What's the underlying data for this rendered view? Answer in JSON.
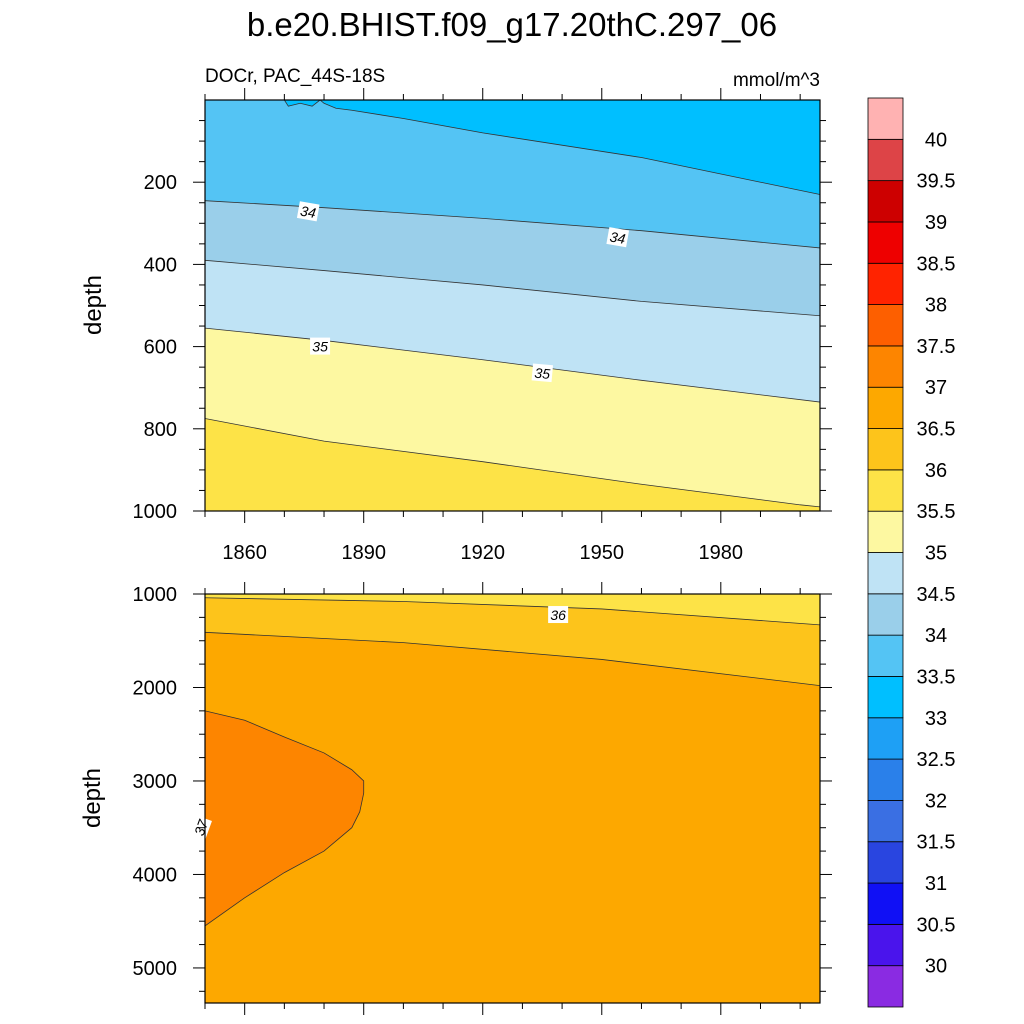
{
  "title": "b.e20.BHIST.f09_g17.20thC.297_06",
  "colorbar": {
    "levels": [
      "30",
      "30.5",
      "31",
      "31.5",
      "32",
      "32.5",
      "33",
      "33.5",
      "34",
      "34.5",
      "35",
      "35.5",
      "36",
      "36.5",
      "37",
      "37.5",
      "38",
      "38.5",
      "39",
      "39.5",
      "40"
    ],
    "colors": [
      "#8a2be2",
      "#4a14ec",
      "#1010f5",
      "#2945e0",
      "#3a6fe3",
      "#2a80ea",
      "#1ea0f5",
      "#00bfff",
      "#54c4f4",
      "#9acfea",
      "#bfe3f5",
      "#fdf8a1",
      "#fde347",
      "#fdc41b",
      "#fda800",
      "#fd8500",
      "#fd5f00",
      "#ff2300",
      "#ee0000",
      "#cd0000",
      "#dd4447",
      "#ffb2b2"
    ]
  },
  "chart_data": [
    {
      "type": "heatmap",
      "subtitle_left": "DOCr, PAC_44S-18S",
      "subtitle_right": "mmol/m^3",
      "ylabel": "depth",
      "xlim": [
        1850,
        2005
      ],
      "ylim": [
        0,
        1000
      ],
      "y_inverted": true,
      "x_ticks": [
        1860,
        1890,
        1920,
        1950,
        1980
      ],
      "y_ticks": [
        200,
        400,
        600,
        800,
        1000
      ],
      "bands": [
        {
          "fill": "#fde347",
          "upper_edge": [
            [
              1850,
              775
            ],
            [
              1880,
              830
            ],
            [
              1920,
              880
            ],
            [
              1960,
              935
            ],
            [
              2000,
              985
            ],
            [
              2005,
              990
            ]
          ]
        },
        {
          "fill": "#fdf8a1",
          "upper_edge": [
            [
              1850,
              555
            ],
            [
              1880,
              585
            ],
            [
              1920,
              632
            ],
            [
              1960,
              682
            ],
            [
              2005,
              735
            ]
          ]
        },
        {
          "fill": "#bfe3f5",
          "upper_edge": [
            [
              1850,
              390
            ],
            [
              1880,
              415
            ],
            [
              1920,
              450
            ],
            [
              1960,
              490
            ],
            [
              2005,
              525
            ]
          ]
        },
        {
          "fill": "#9acfea",
          "upper_edge": [
            [
              1850,
              245
            ],
            [
              1880,
              262
            ],
            [
              1920,
              288
            ],
            [
              1960,
              318
            ],
            [
              2005,
              360
            ]
          ]
        },
        {
          "fill": "#54c4f4",
          "upper_edge": [
            [
              1870,
              0
            ],
            [
              1871,
              15
            ],
            [
              1874,
              8
            ],
            [
              1877,
              15
            ],
            [
              1879,
              0
            ],
            [
              1880,
              8
            ],
            [
              1883,
              20
            ],
            [
              1887,
              25
            ],
            [
              1900,
              45
            ],
            [
              1920,
              80
            ],
            [
              1960,
              140
            ],
            [
              2005,
              230
            ]
          ]
        }
      ],
      "contour_labels": [
        {
          "text": "34",
          "x": 1876,
          "y": 272,
          "angle": 10
        },
        {
          "text": "34",
          "x": 1954,
          "y": 335,
          "angle": 10
        },
        {
          "text": "35",
          "x": 1879,
          "y": 600,
          "angle": 0
        },
        {
          "text": "35",
          "x": 1935,
          "y": 665,
          "angle": 5
        }
      ]
    },
    {
      "type": "heatmap",
      "ylabel": "depth",
      "xlim": [
        1850,
        2005
      ],
      "ylim": [
        1000,
        5375
      ],
      "y_inverted": true,
      "x_ticks": [],
      "y_ticks": [
        1000,
        2000,
        3000,
        4000,
        5000
      ],
      "bands": [
        {
          "fill": "#fde347",
          "upper_edge": [
            [
              1850,
              1000
            ],
            [
              2005,
              1000
            ]
          ]
        },
        {
          "fill": "#fdc41b",
          "upper_edge": [
            [
              1850,
              1040
            ],
            [
              1900,
              1080
            ],
            [
              1950,
              1160
            ],
            [
              2005,
              1330
            ]
          ]
        },
        {
          "fill": "#fda800",
          "upper_edge": [
            [
              1850,
              1410
            ],
            [
              1900,
              1520
            ],
            [
              1950,
              1700
            ],
            [
              2005,
              1980
            ]
          ]
        }
      ],
      "region": {
        "fill": "#fd8500",
        "outline": [
          [
            1850,
            2250
          ],
          [
            1860,
            2350
          ],
          [
            1870,
            2530
          ],
          [
            1880,
            2700
          ],
          [
            1887,
            2880
          ],
          [
            1890,
            3000
          ],
          [
            1890,
            3130
          ],
          [
            1889,
            3330
          ],
          [
            1887,
            3500
          ],
          [
            1880,
            3750
          ],
          [
            1870,
            3980
          ],
          [
            1860,
            4250
          ],
          [
            1850,
            4550
          ],
          [
            1843,
            4780
          ],
          [
            1840,
            4950
          ],
          [
            1838,
            5180
          ],
          [
            1837,
            5375
          ],
          [
            1850,
            5375
          ]
        ]
      },
      "contour_labels": [
        {
          "text": "36",
          "x": 1939,
          "y": 1225,
          "angle": 0
        },
        {
          "text": "37",
          "x": 1849,
          "y": 3500,
          "angle": -70
        }
      ]
    }
  ]
}
